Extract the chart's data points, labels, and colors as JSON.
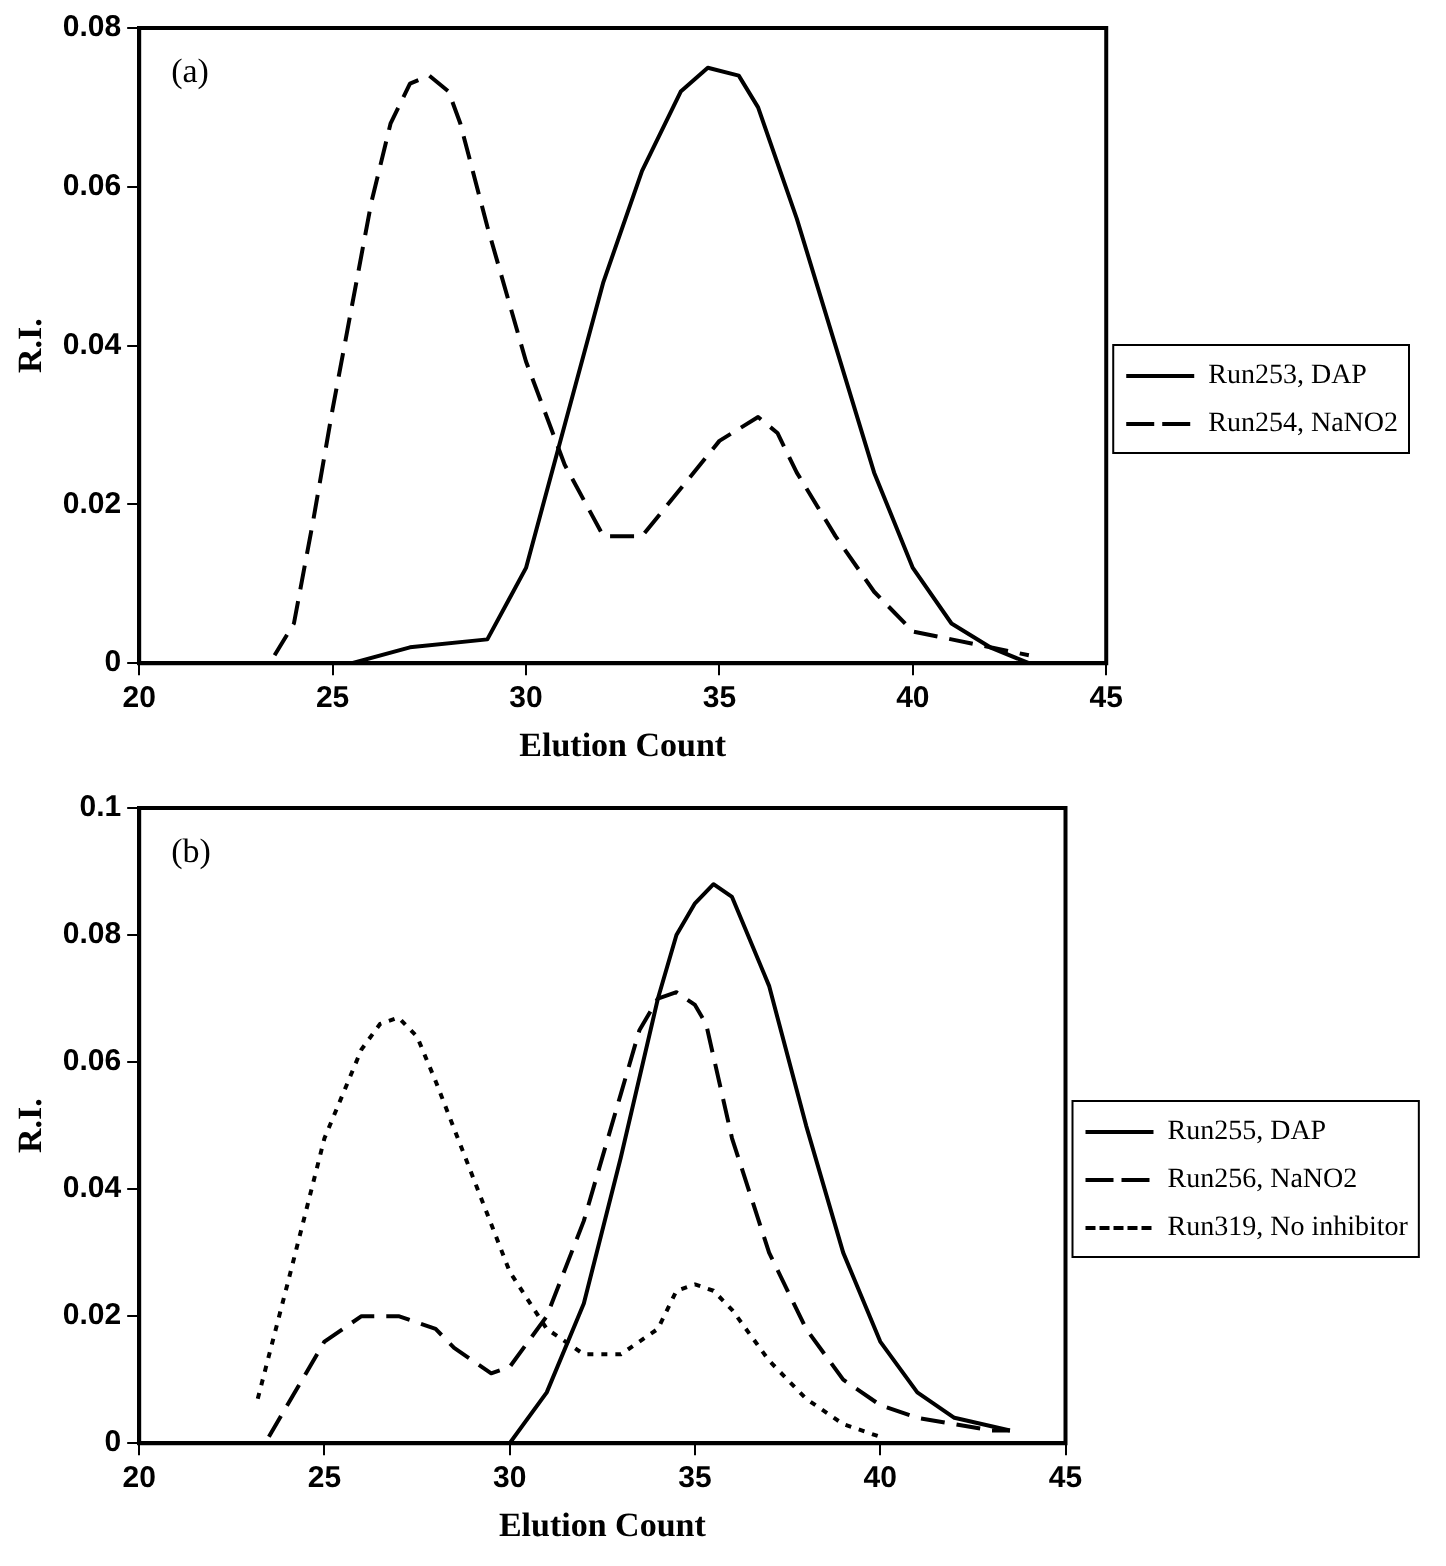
{
  "chart_data": [
    {
      "type": "line",
      "xlabel": "Elution Count",
      "ylabel": "R.I.",
      "annotations": [
        "(a)"
      ],
      "xlim": [
        20,
        45
      ],
      "xticks": [
        20,
        25,
        30,
        35,
        40,
        45
      ],
      "ylim": [
        0,
        0.08
      ],
      "yticks": [
        0,
        0.02,
        0.04,
        0.06,
        0.08
      ],
      "grid": false,
      "legend": "right",
      "marker": "none",
      "series": [
        {
          "name": "Run253, DAP",
          "color": "#000000",
          "line_style": "solid",
          "x": [
            25.5,
            27,
            29,
            30,
            31,
            32,
            33,
            34,
            34.7,
            35.5,
            36,
            37,
            38,
            39,
            40,
            41,
            42,
            43
          ],
          "values": [
            0,
            0.002,
            0.003,
            0.012,
            0.03,
            0.048,
            0.062,
            0.072,
            0.075,
            0.074,
            0.07,
            0.056,
            0.04,
            0.024,
            0.012,
            0.005,
            0.002,
            0
          ]
        },
        {
          "name": "Run254, NaNO2",
          "color": "#000000",
          "line_style": "dashed",
          "x": [
            23.5,
            24,
            24.5,
            25,
            25.5,
            26,
            26.5,
            27,
            27.5,
            28,
            28.3,
            29,
            30,
            31,
            32,
            33,
            34,
            35,
            36,
            36.5,
            37,
            38,
            39,
            40,
            41,
            42,
            43
          ],
          "values": [
            0.001,
            0.005,
            0.018,
            0.032,
            0.045,
            0.058,
            0.068,
            0.073,
            0.074,
            0.072,
            0.068,
            0.055,
            0.038,
            0.025,
            0.016,
            0.016,
            0.022,
            0.028,
            0.031,
            0.029,
            0.024,
            0.016,
            0.009,
            0.004,
            0.003,
            0.002,
            0.001
          ]
        }
      ]
    },
    {
      "type": "line",
      "xlabel": "Elution Count",
      "ylabel": "R.I.",
      "annotations": [
        "(b)"
      ],
      "xlim": [
        20,
        45
      ],
      "xticks": [
        20,
        25,
        30,
        35,
        40,
        45
      ],
      "ylim": [
        0,
        0.1
      ],
      "yticks": [
        0,
        0.02,
        0.04,
        0.06,
        0.08,
        0.1
      ],
      "grid": false,
      "legend": "right",
      "marker": "none",
      "series": [
        {
          "name": "Run255, DAP",
          "color": "#000000",
          "line_style": "solid",
          "x": [
            30,
            31,
            32,
            33,
            34,
            34.5,
            35,
            35.5,
            36,
            37,
            38,
            39,
            40,
            41,
            42,
            43.5
          ],
          "values": [
            0,
            0.008,
            0.022,
            0.045,
            0.07,
            0.08,
            0.085,
            0.088,
            0.086,
            0.072,
            0.05,
            0.03,
            0.016,
            0.008,
            0.004,
            0.002
          ]
        },
        {
          "name": "Run256, NaNO2",
          "color": "#000000",
          "line_style": "dashed",
          "x": [
            23.5,
            24,
            25,
            25.5,
            26,
            27,
            28,
            28.5,
            29,
            29.5,
            30,
            31,
            32,
            33,
            33.5,
            34,
            34.5,
            35,
            35.3,
            36,
            37,
            38,
            39,
            40,
            41,
            42,
            43,
            43.5
          ],
          "values": [
            0.001,
            0.006,
            0.016,
            0.018,
            0.02,
            0.02,
            0.018,
            0.015,
            0.013,
            0.011,
            0.012,
            0.02,
            0.035,
            0.055,
            0.065,
            0.07,
            0.071,
            0.069,
            0.066,
            0.048,
            0.03,
            0.018,
            0.01,
            0.006,
            0.004,
            0.003,
            0.002,
            0.002
          ]
        },
        {
          "name": "Run319, No inhibitor",
          "color": "#000000",
          "line_style": "dotted",
          "x": [
            23.2,
            24,
            25,
            26,
            26.5,
            27,
            27.5,
            28,
            29,
            30,
            31,
            32,
            33,
            34,
            34.5,
            35,
            35.5,
            36,
            37,
            38,
            39,
            40
          ],
          "values": [
            0.007,
            0.025,
            0.048,
            0.062,
            0.066,
            0.067,
            0.064,
            0.057,
            0.042,
            0.027,
            0.018,
            0.014,
            0.014,
            0.018,
            0.024,
            0.025,
            0.024,
            0.021,
            0.013,
            0.007,
            0.003,
            0.001
          ]
        }
      ]
    }
  ]
}
